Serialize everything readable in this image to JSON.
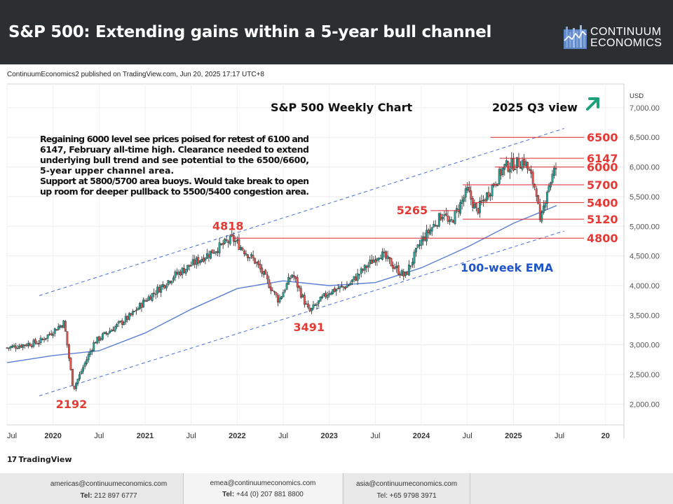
{
  "header": {
    "title": "S&P 500: Extending gains within a 5-year bull channel",
    "logo_line1": "CONTINUUM",
    "logo_line2": "ECONOMICS"
  },
  "published_line": "ContinuumEconomics2 published on TradingView.com, Jun 20, 2025 17:17 UTC+8",
  "tradingview_label": "TradingView",
  "footer": [
    {
      "email": "americas@continuumeconomics.com",
      "tel_label": "Tel:",
      "tel": "212 897 6777"
    },
    {
      "email": "emea@continuumeconomics.com",
      "tel_label": "Tel:",
      "tel": "+44 (0) 207 881 8800"
    },
    {
      "email": "asia@continuumeconomics.com",
      "tel_label": "Tel:",
      "tel": "+65 9798 3971"
    }
  ],
  "chart_data": {
    "type": "candlestick",
    "title": "S&P 500 Weekly Chart",
    "subtitle": "2025 Q3 view",
    "currency": "USD",
    "y_ticks": [
      "7,000.00",
      "6,500.00",
      "6,000.00",
      "5,500.00",
      "5,000.00",
      "4,500.00",
      "4,000.00",
      "3,500.00",
      "3,000.00",
      "2,500.00",
      "2,000.00"
    ],
    "y_tick_values": [
      7000,
      6500,
      6000,
      5500,
      5000,
      4500,
      4000,
      3500,
      3000,
      2500,
      2000
    ],
    "ylim": [
      1650,
      7400
    ],
    "xlim": [
      2019.5,
      2026.2
    ],
    "x_ticks": [
      {
        "label": "Jul",
        "t": 2019.5
      },
      {
        "label": "2020",
        "t": 2020.0
      },
      {
        "label": "Jul",
        "t": 2020.5
      },
      {
        "label": "2021",
        "t": 2021.0
      },
      {
        "label": "Jul",
        "t": 2021.5
      },
      {
        "label": "2022",
        "t": 2022.0
      },
      {
        "label": "Jul",
        "t": 2022.5
      },
      {
        "label": "2023",
        "t": 2023.0
      },
      {
        "label": "Jul",
        "t": 2023.5
      },
      {
        "label": "2024",
        "t": 2024.0
      },
      {
        "label": "Jul",
        "t": 2024.5
      },
      {
        "label": "2025",
        "t": 2025.0
      },
      {
        "label": "Jul",
        "t": 2025.5
      },
      {
        "label": "20",
        "t": 2026.0
      }
    ],
    "commentary": [
      "Regaining 6000 level see prices poised for retest of 6100 and",
      "6147, February all-time high. Clearance needed to extend",
      "underlying bull trend and see potential to the 6500/6600,",
      "5-year upper channel area.",
      "Support at 5800/5700 area buoys. Would take break to open",
      "up room for deeper pullback to 5500/5400 congestion area."
    ],
    "anchors": [
      {
        "t": 2019.5,
        "v": 2950
      },
      {
        "t": 2019.85,
        "v": 3050
      },
      {
        "t": 2020.12,
        "v": 3380
      },
      {
        "t": 2020.22,
        "v": 2250
      },
      {
        "t": 2020.45,
        "v": 3050
      },
      {
        "t": 2020.85,
        "v": 3500
      },
      {
        "t": 2021.0,
        "v": 3750
      },
      {
        "t": 2021.3,
        "v": 4150
      },
      {
        "t": 2021.6,
        "v": 4450
      },
      {
        "t": 2021.95,
        "v": 4790
      },
      {
        "t": 2022.2,
        "v": 4400
      },
      {
        "t": 2022.45,
        "v": 3750
      },
      {
        "t": 2022.6,
        "v": 4200
      },
      {
        "t": 2022.78,
        "v": 3550
      },
      {
        "t": 2023.0,
        "v": 3900
      },
      {
        "t": 2023.2,
        "v": 4000
      },
      {
        "t": 2023.55,
        "v": 4550
      },
      {
        "t": 2023.82,
        "v": 4150
      },
      {
        "t": 2024.0,
        "v": 4750
      },
      {
        "t": 2024.25,
        "v": 5250
      },
      {
        "t": 2024.3,
        "v": 5000
      },
      {
        "t": 2024.5,
        "v": 5600
      },
      {
        "t": 2024.6,
        "v": 5250
      },
      {
        "t": 2024.9,
        "v": 6000
      },
      {
        "t": 2025.12,
        "v": 6100
      },
      {
        "t": 2025.25,
        "v": 5600
      },
      {
        "t": 2025.29,
        "v": 5000
      },
      {
        "t": 2025.36,
        "v": 5600
      },
      {
        "t": 2025.45,
        "v": 5950
      },
      {
        "t": 2025.47,
        "v": 6000
      }
    ],
    "ema_label": "100-week EMA",
    "ema": [
      {
        "t": 2019.5,
        "v": 2700
      },
      {
        "t": 2020.0,
        "v": 2820
      },
      {
        "t": 2020.5,
        "v": 2900
      },
      {
        "t": 2021.0,
        "v": 3200
      },
      {
        "t": 2021.5,
        "v": 3600
      },
      {
        "t": 2022.0,
        "v": 3950
      },
      {
        "t": 2022.5,
        "v": 4080
      },
      {
        "t": 2023.0,
        "v": 4000
      },
      {
        "t": 2023.5,
        "v": 4050
      },
      {
        "t": 2024.0,
        "v": 4300
      },
      {
        "t": 2024.5,
        "v": 4650
      },
      {
        "t": 2025.0,
        "v": 5050
      },
      {
        "t": 2025.47,
        "v": 5350
      }
    ],
    "channel": {
      "upper": [
        {
          "t": 2019.85,
          "v": 3830
        },
        {
          "t": 2025.55,
          "v": 6650
        }
      ],
      "lower": [
        {
          "t": 2019.85,
          "v": 2140
        },
        {
          "t": 2025.55,
          "v": 4920
        }
      ]
    },
    "levels": [
      {
        "label": "6500",
        "value": 6500,
        "t_start": 2024.75
      },
      {
        "label": "6147",
        "value": 6147,
        "t_start": 2024.85
      },
      {
        "label": "6000",
        "value": 6000,
        "t_start": 2024.8
      },
      {
        "label": "5700",
        "value": 5700,
        "t_start": 2024.45
      },
      {
        "label": "5400",
        "value": 5400,
        "t_start": 2024.55
      },
      {
        "label": "5120",
        "value": 5120,
        "t_start": 2024.45
      },
      {
        "label": "4800",
        "value": 4800,
        "t_start": 2021.95
      }
    ],
    "level_5265": {
      "label": "5265",
      "value": 5265,
      "t_start": 2024.1,
      "t_end": 2024.38
    },
    "point_labels": [
      {
        "label": "4818",
        "t": 2021.9,
        "v": 4818,
        "pos": "above"
      },
      {
        "label": "3491",
        "t": 2022.78,
        "v": 3491,
        "pos": "below"
      },
      {
        "label": "2192",
        "t": 2020.2,
        "v": 2192,
        "pos": "below"
      }
    ],
    "colors": {
      "up": "#26a69a",
      "down": "#ef5350",
      "candle": "#1f1f1f",
      "ema": "#5b7fd6",
      "channel": "#4a6fdc",
      "level": "#d7262e",
      "level_label": "#e53935",
      "ema_label": "#1e55c8",
      "arrow": "#1aa37a"
    }
  }
}
